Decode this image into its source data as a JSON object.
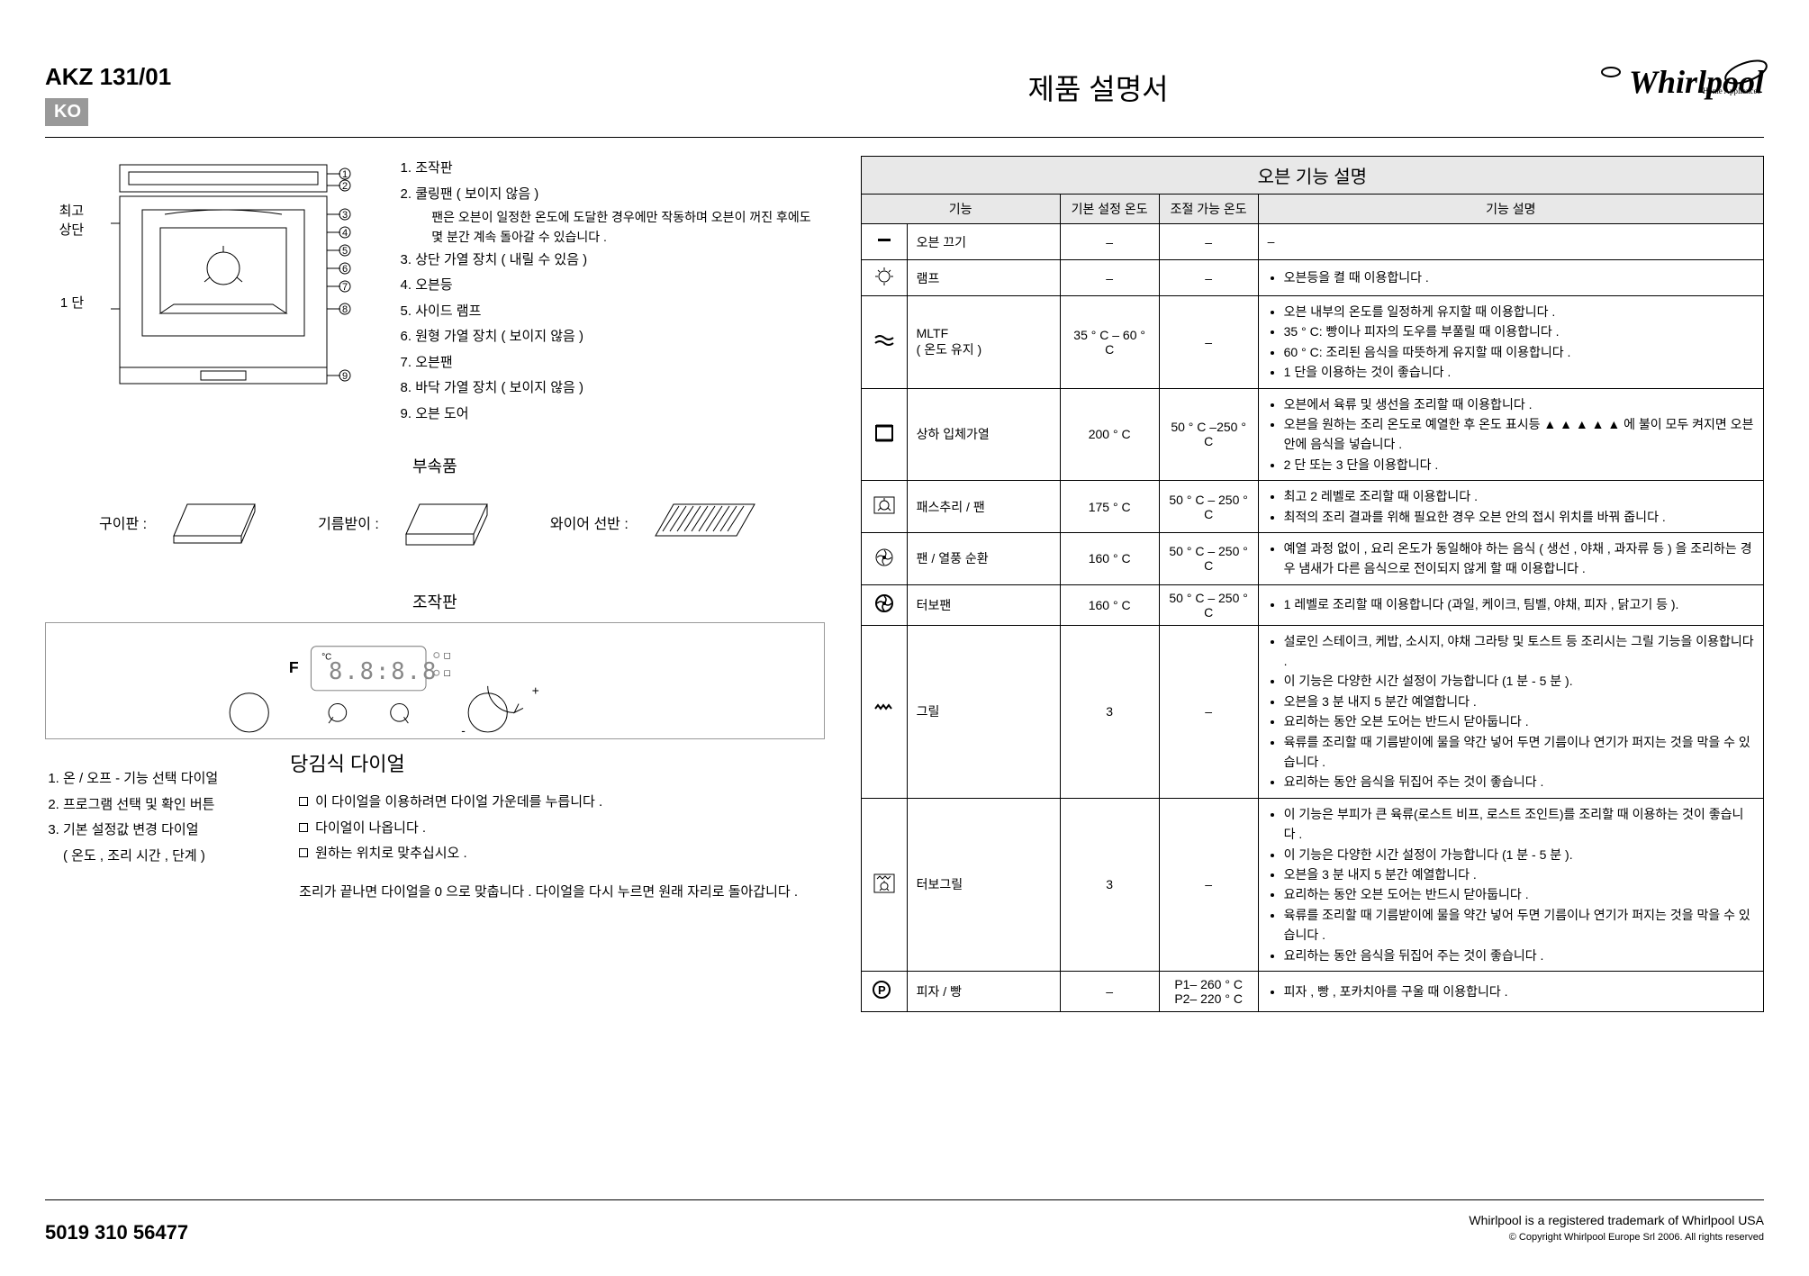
{
  "header": {
    "model": "AKZ 131/01",
    "lang": "KO",
    "title": "제품 설명서",
    "logo_text": "Whirlpool",
    "logo_sub": "Home Appliances"
  },
  "oven_labels": {
    "top": "최고\n상단",
    "bottom": "1 단"
  },
  "parts": [
    "조작판",
    "쿨링팬 ( 보이지 않음 )",
    "상단 가열 장치 ( 내릴 수 있음 )",
    "오븐등",
    "사이드 램프",
    "원형 가열 장치 ( 보이지 않음 )",
    "오븐팬",
    "바닥 가열 장치 ( 보이지 않음 )",
    "오븐 도어"
  ],
  "part2_sub": "팬은 오븐이 일정한 온도에 도달한 경우에만 작동하며 오븐이 꺼진 후에도 몇 분간 계속 돌아갈 수 있습니다 .",
  "accessories": {
    "title": "부속품",
    "items": {
      "grill": "구이판 :",
      "drip": "기름받이 :",
      "wire": "와이어 선반 :"
    }
  },
  "controls": {
    "title": "조작판",
    "f_label": "F",
    "legend": [
      "온 / 오프 - 기능 선택 다이얼",
      "프로그램 선택 및 확인 버튼",
      "기본 설정값 변경 다이얼\n( 온도 , 조리 시간 , 단계 )"
    ]
  },
  "dial": {
    "title": "당김식 다이얼",
    "items": [
      "이 다이얼을 이용하려면 다이얼 가운데를 누릅니다 .",
      "다이얼이 나옵니다 .",
      "원하는 위치로 맞추십시오 ."
    ],
    "note": "조리가 끝나면 다이얼을 0 으로 맞춥니다 . 다이얼을 다시 누르면 원래 자리로 돌아갑니다 ."
  },
  "table": {
    "title": "오븐 기능 설명",
    "headers": [
      "기능",
      "기본 설정 온도",
      "조절 가능 온도",
      "기능 설명"
    ],
    "rows": [
      {
        "icon": "off",
        "name": "오븐 끄기",
        "t1": "–",
        "t2": "–",
        "desc_plain": "–"
      },
      {
        "icon": "lamp",
        "name": "램프",
        "t1": "–",
        "t2": "–",
        "desc": [
          "오븐등을 켤 때 이용합니다 ."
        ]
      },
      {
        "icon": "mltf",
        "name": "MLTF\n( 온도 유지 )",
        "t1": "35 ° C – 60 ° C",
        "t2": "–",
        "desc": [
          "오븐 내부의 온도를 일정하게 유지할 때 이용합니다 .",
          "35 ° C: 빵이나 피자의 도우를 부풀릴 때 이용합니다 .",
          "60 ° C: 조리된 음식을 따뜻하게 유지할 때 이용합니다 .",
          "1 단을 이용하는 것이 좋습니다 ."
        ]
      },
      {
        "icon": "conv",
        "name": "상하 입체가열",
        "t1": "200 ° C",
        "t2": "50 ° C –250 ° C",
        "desc": [
          "오븐에서 육류 및 생선을 조리할 때 이용합니다 .",
          "오븐을 원하는 조리 온도로 예열한 후 온도 표시등 ▲ ▲ ▲ ▲ ▲ 에 불이 모두 켜지면 오븐 안에 음식을 넣습니다 .",
          "2 단 또는 3 단을 이용합니다 ."
        ]
      },
      {
        "icon": "pastry",
        "name": "패스추리 / 팬",
        "t1": "175 ° C",
        "t2": "50 ° C – 250 ° C",
        "desc": [
          "최고 2 레벨로 조리할 때 이용합니다 .",
          "최적의 조리 결과를 위해 필요한 경우 오븐 안의 접시 위치를 바꿔 줍니다 ."
        ]
      },
      {
        "icon": "fanhot",
        "name": "팬 / 열풍 순환",
        "t1": "160 ° C",
        "t2": "50 ° C – 250 ° C",
        "desc": [
          "예열 과정 없이 , 요리 온도가 동일해야 하는 음식 ( 생선 , 야채 , 과자류 등 ) 을 조리하는 경우 냄새가 다른 음식으로 전이되지 않게 할 때 이용합니다 ."
        ]
      },
      {
        "icon": "turbofan",
        "name": "터보팬",
        "t1": "160 ° C",
        "t2": "50 ° C – 250 ° C",
        "desc": [
          "1 레벨로 조리할 때 이용합니다 (과일, 케이크, 팀벨, 야채, 피자 , 닭고기 등 )."
        ]
      },
      {
        "icon": "grill",
        "name": "그릴",
        "t1": "3",
        "t2": "–",
        "desc": [
          "설로인 스테이크, 케밥, 소시지, 야채 그라탕 및 토스트 등 조리시는 그릴 기능을 이용합니다 .",
          "이 기능은 다양한 시간 설정이 가능합니다 (1 분 - 5 분 ).",
          "오븐을 3 분 내지 5 분간 예열합니다 .",
          "요리하는 동안 오븐 도어는 반드시 닫아둡니다 .",
          "육류를 조리할 때 기름받이에 물을 약간 넣어 두면 기름이나 연기가 퍼지는 것을 막을 수 있습니다 .",
          "요리하는 동안 음식을 뒤집어 주는 것이 좋습니다 ."
        ]
      },
      {
        "icon": "turbogrill",
        "name": "터보그릴",
        "t1": "3",
        "t2": "–",
        "desc": [
          "이 기능은 부피가 큰 육류(로스트 비프, 로스트 조인트)를 조리할 때 이용하는 것이 좋습니다 .",
          "이 기능은 다양한 시간 설정이 가능합니다 (1 분 - 5 분 ).",
          "오븐을 3 분 내지 5 분간 예열합니다 .",
          "요리하는 동안 오븐 도어는 반드시 닫아둡니다 .",
          "육류를 조리할 때 기름받이에 물을 약간 넣어 두면 기름이나 연기가 퍼지는 것을 막을 수 있습니다 .",
          "요리하는 동안 음식을 뒤집어 주는 것이 좋습니다 ."
        ]
      },
      {
        "icon": "pizza",
        "name": "피자 / 빵",
        "t1": "–",
        "t2": "P1– 260 ° C\nP2– 220 ° C",
        "desc": [
          "피자 , 빵 , 포카치아를 구울 때 이용합니다 ."
        ]
      }
    ]
  },
  "footer": {
    "left": "5019 310 56477",
    "right1": "Whirlpool is a registered trademark of Whirlpool USA",
    "right2": "© Copyright Whirlpool Europe Srl 2006. All rights reserved"
  },
  "colors": {
    "badge_bg": "#999999",
    "header_bg": "#e8e8e8",
    "border": "#000000"
  }
}
